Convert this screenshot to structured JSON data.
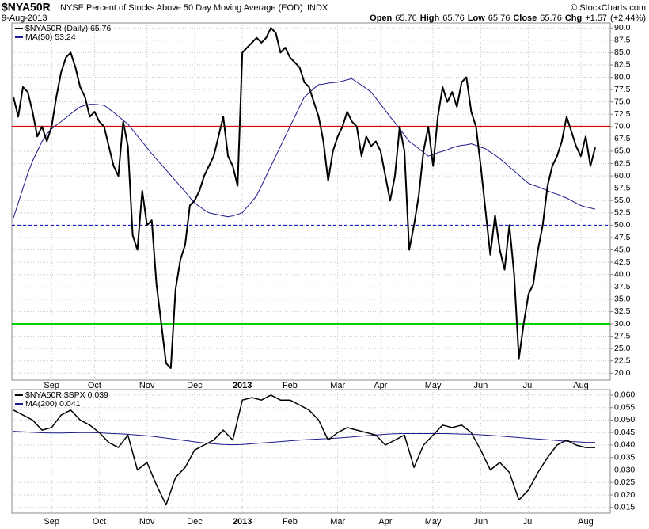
{
  "header": {
    "symbol": "$NYA50R",
    "name": "NYSE Percent of Stocks Above 50 Day Moving Average (EOD)",
    "exchange": "INDX",
    "date": "9-Aug-2013",
    "credit": "© StockCharts.com",
    "quote": [
      {
        "label": "Open",
        "value": 65.76
      },
      {
        "label": "High",
        "value": 65.76
      },
      {
        "label": "Low",
        "value": 65.76
      },
      {
        "label": "Close",
        "value": 65.76
      },
      {
        "label": "Chg",
        "value": 1.57,
        "value_label": "+1.57"
      },
      {
        "label": "",
        "value": 2.44,
        "value_label": "(+2.44%)"
      }
    ]
  },
  "chart_data": [
    {
      "type": "line",
      "grid": true,
      "legend": "top-left",
      "categories": [
        null,
        null,
        null,
        null,
        null,
        null,
        null,
        null,
        "Sep",
        null,
        null,
        null,
        null,
        null,
        null,
        null,
        null,
        "Oct",
        null,
        null,
        null,
        null,
        null,
        null,
        null,
        null,
        null,
        null,
        "Nov",
        null,
        null,
        null,
        null,
        null,
        null,
        null,
        null,
        null,
        "Dec",
        null,
        null,
        null,
        null,
        null,
        null,
        null,
        null,
        null,
        "2013",
        null,
        null,
        null,
        null,
        null,
        null,
        null,
        null,
        null,
        "Feb",
        null,
        null,
        null,
        null,
        null,
        null,
        null,
        null,
        null,
        "Mar",
        null,
        null,
        null,
        null,
        null,
        null,
        null,
        null,
        "Apr",
        null,
        null,
        null,
        null,
        null,
        null,
        null,
        null,
        null,
        null,
        "May",
        null,
        null,
        null,
        null,
        null,
        null,
        null,
        null,
        null,
        "Jun",
        null,
        null,
        null,
        null,
        null,
        null,
        null,
        null,
        null,
        "Jul",
        null,
        null,
        null,
        null,
        null,
        null,
        null,
        null,
        null,
        null,
        "Aug",
        null,
        null,
        null
      ],
      "series": [
        {
          "name": "$NYA50R (Daily) 65.76",
          "color": "#000000",
          "width": 2,
          "values": [
            76,
            72,
            78,
            77,
            73,
            68,
            70,
            67,
            70,
            76,
            81,
            84,
            85,
            82,
            78,
            76,
            72,
            73,
            71,
            70,
            66,
            62,
            60,
            71,
            66,
            48,
            45,
            57,
            50,
            51,
            38,
            30,
            22,
            21,
            37,
            43,
            46,
            54,
            55,
            57,
            60,
            62,
            64,
            68,
            72,
            64,
            62,
            58,
            85,
            86,
            87,
            88,
            87,
            88,
            90,
            89,
            85,
            86,
            84,
            83,
            82,
            79,
            78,
            75,
            72,
            67,
            59,
            65,
            68,
            70,
            73,
            71,
            70,
            64,
            68,
            66,
            67,
            65,
            60,
            55,
            60,
            70,
            65,
            45,
            50,
            56,
            65,
            70,
            62,
            72,
            78,
            75,
            77,
            74,
            79,
            80,
            73,
            70,
            62,
            53,
            44,
            52,
            45,
            41,
            50,
            40,
            23,
            30,
            36,
            38,
            45,
            50,
            58,
            62,
            64,
            67,
            72,
            69,
            66,
            64,
            68,
            62,
            65.76
          ]
        },
        {
          "name": "MA(50) 53.24",
          "color": "#1a1a8c",
          "width": 1,
          "values": [
            51.5,
            54.5,
            57.5,
            60.5,
            63,
            65,
            67,
            68.5,
            69.5,
            70.3,
            71,
            71.8,
            72.6,
            73.3,
            74,
            74.3,
            74.5,
            74.5,
            74.4,
            74.3,
            73.6,
            72.9,
            72.1,
            71.3,
            70.5,
            69.3,
            68.1,
            66.9,
            65.7,
            64.5,
            63.4,
            62.3,
            61.2,
            60.1,
            59,
            57.9,
            56.8,
            55.6,
            54.5,
            53.8,
            53.1,
            52.5,
            52.3,
            52.1,
            51.9,
            51.7,
            51.9,
            52.2,
            52.5,
            53.7,
            54.8,
            56,
            58,
            60,
            62,
            64,
            66,
            68,
            70,
            72,
            74,
            76,
            76.8,
            77.7,
            78.5,
            78.6,
            78.8,
            78.9,
            79,
            79.2,
            79.5,
            79.7,
            79,
            78.4,
            77.7,
            77,
            75.8,
            74.5,
            73.3,
            72,
            70.8,
            69.5,
            68.3,
            67,
            66.3,
            65.5,
            64.8,
            64,
            64.3,
            64.7,
            65,
            65.3,
            65.7,
            66,
            66.2,
            66.3,
            66.5,
            66.2,
            65.8,
            65.5,
            64.8,
            64.2,
            63.5,
            62.7,
            61.8,
            61,
            60.2,
            59.3,
            58.5,
            58.1,
            57.8,
            57.4,
            57,
            56.6,
            56.3,
            55.9,
            55.5,
            55,
            54.5,
            54,
            53.7,
            53.5,
            53.24
          ]
        }
      ],
      "reference_lines": [
        {
          "value": 70,
          "color": "#e00000",
          "style": "solid"
        },
        {
          "value": 50,
          "color": "#0000c8",
          "style": "dashed"
        },
        {
          "value": 30,
          "color": "#00d000",
          "style": "solid"
        }
      ],
      "ylim": [
        18.6,
        91
      ],
      "yticks": [
        {
          "value": 20,
          "label": "20.0"
        },
        22.5,
        {
          "value": 25,
          "label": "25.0"
        },
        27.5,
        {
          "value": 30,
          "label": "30.0"
        },
        32.5,
        {
          "value": 35,
          "label": "35.0"
        },
        37.5,
        {
          "value": 40,
          "label": "40.0"
        },
        42.5,
        {
          "value": 45,
          "label": "45.0"
        },
        47.5,
        {
          "value": 50,
          "label": "50.0"
        },
        52.5,
        {
          "value": 55,
          "label": "55.0"
        },
        57.5,
        {
          "value": 60,
          "label": "60.0"
        },
        62.5,
        {
          "value": 65,
          "label": "65.0"
        },
        67.5,
        {
          "value": 70,
          "label": "70.0"
        },
        72.5,
        {
          "value": 75,
          "label": "75.0"
        },
        77.5,
        {
          "value": 80,
          "label": "80.0"
        },
        82.5,
        {
          "value": 85,
          "label": "85.0"
        },
        87.5,
        {
          "value": 90,
          "label": "90.0"
        }
      ]
    },
    {
      "type": "line",
      "grid": true,
      "legend": "top-left",
      "categories": [
        null,
        null,
        null,
        null,
        "Sep",
        null,
        null,
        null,
        null,
        "Oct",
        null,
        null,
        null,
        null,
        "Nov",
        null,
        null,
        null,
        null,
        "Dec",
        null,
        null,
        null,
        null,
        "2013",
        null,
        null,
        null,
        null,
        "Feb",
        null,
        null,
        null,
        null,
        "Mar",
        null,
        null,
        null,
        null,
        "Apr",
        null,
        null,
        null,
        null,
        "May",
        null,
        null,
        null,
        null,
        "Jun",
        null,
        null,
        null,
        null,
        "Jul",
        null,
        null,
        null,
        null,
        null,
        "Aug",
        null
      ],
      "series": [
        {
          "name": "$NYA50R:$SPX 0.039",
          "color": "#000000",
          "width": 1.5,
          "values": [
            0.054,
            0.052,
            0.05,
            0.046,
            0.047,
            0.052,
            0.054,
            0.05,
            0.048,
            0.045,
            0.041,
            0.039,
            0.044,
            0.03,
            0.033,
            0.024,
            0.016,
            0.027,
            0.031,
            0.038,
            0.04,
            0.042,
            0.046,
            0.042,
            0.058,
            0.059,
            0.058,
            0.06,
            0.058,
            0.058,
            0.056,
            0.054,
            0.05,
            0.042,
            0.045,
            0.047,
            0.046,
            0.045,
            0.044,
            0.04,
            0.042,
            0.044,
            0.031,
            0.04,
            0.044,
            0.048,
            0.047,
            0.048,
            0.045,
            0.038,
            0.03,
            0.033,
            0.029,
            0.018,
            0.022,
            0.029,
            0.035,
            0.04,
            0.042,
            0.04,
            0.039,
            0.039
          ]
        },
        {
          "name": "MA(200) 0.041",
          "color": "#1a1a8c",
          "width": 1,
          "values": [
            0.0455,
            0.0453,
            0.0451,
            0.0449,
            0.0448,
            0.0448,
            0.0449,
            0.045,
            0.045,
            0.0449,
            0.0447,
            0.0445,
            0.0443,
            0.044,
            0.0437,
            0.0433,
            0.0428,
            0.0423,
            0.0418,
            0.0413,
            0.0408,
            0.0405,
            0.0402,
            0.0401,
            0.0402,
            0.0405,
            0.0408,
            0.0411,
            0.0414,
            0.0417,
            0.042,
            0.0422,
            0.0424,
            0.0426,
            0.0428,
            0.0431,
            0.0434,
            0.0437,
            0.044,
            0.0443,
            0.0445,
            0.0446,
            0.0446,
            0.0446,
            0.0446,
            0.0446,
            0.0445,
            0.0444,
            0.0443,
            0.0441,
            0.0439,
            0.0436,
            0.0433,
            0.043,
            0.0427,
            0.0424,
            0.0421,
            0.0418,
            0.0415,
            0.0413,
            0.0411,
            0.041
          ]
        }
      ],
      "ylim": [
        0.0127,
        0.0622
      ],
      "yticks": [
        0.015,
        {
          "value": 0.02,
          "label": "0.020"
        },
        0.025,
        {
          "value": 0.03,
          "label": "0.030"
        },
        0.035,
        {
          "value": 0.04,
          "label": "0.040"
        },
        0.045,
        {
          "value": 0.05,
          "label": "0.050"
        },
        0.055,
        {
          "value": 0.06,
          "label": "0.060"
        }
      ]
    }
  ]
}
